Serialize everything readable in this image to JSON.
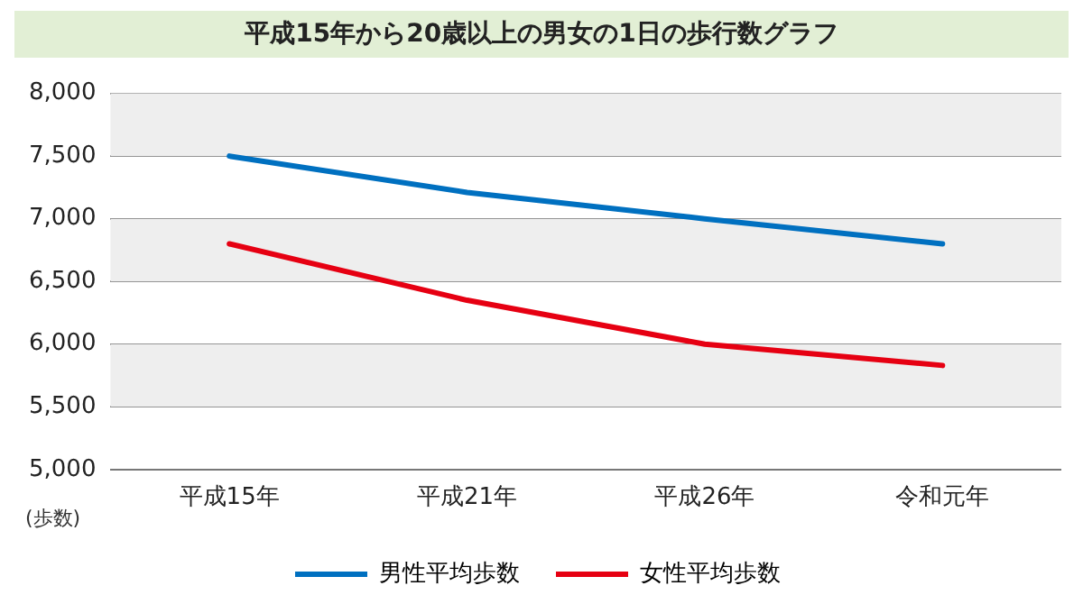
{
  "chart_data": {
    "type": "line",
    "title": "平成15年から20歳以上の男女の1日の歩行数グラフ",
    "ylabel": "(歩数)",
    "categories": [
      "平成15年",
      "平成21年",
      "平成26年",
      "令和元年"
    ],
    "series": [
      {
        "name": "男性平均歩数",
        "color": "#0070c0",
        "values": [
          7500,
          7210,
          7000,
          6800
        ]
      },
      {
        "name": "女性平均歩数",
        "color": "#e60012",
        "values": [
          6800,
          6350,
          6000,
          5830
        ]
      }
    ],
    "ylim": [
      5000,
      8000
    ],
    "yticks": [
      {
        "value": 5000,
        "label": "5,000"
      },
      {
        "value": 5500,
        "label": "5,500"
      },
      {
        "value": 6000,
        "label": "6,000"
      },
      {
        "value": 6500,
        "label": "6,500"
      },
      {
        "value": 7000,
        "label": "7,000"
      },
      {
        "value": 7500,
        "label": "7,500"
      },
      {
        "value": 8000,
        "label": "8,000"
      }
    ],
    "grid": "y",
    "legend": "bottom",
    "marker": "none",
    "line_style": "solid"
  }
}
